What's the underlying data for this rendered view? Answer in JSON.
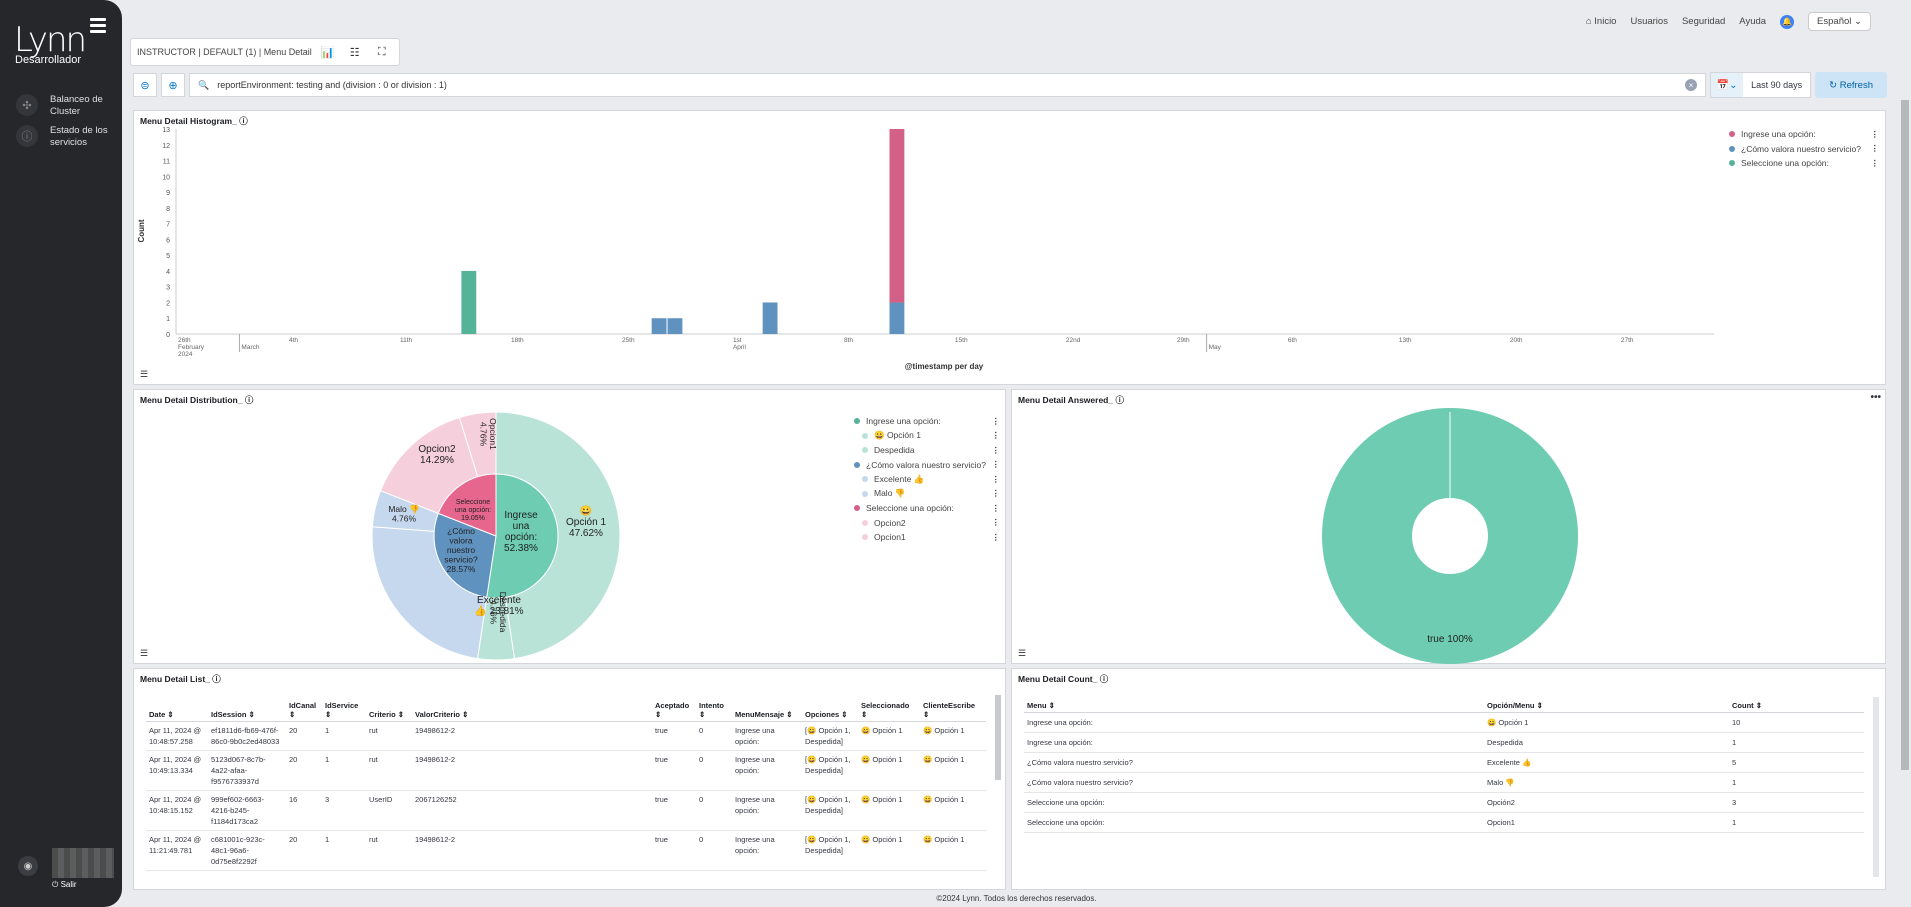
{
  "brand": {
    "logo": "Lynn",
    "role": "Desarrollador",
    "logout": "Salir"
  },
  "sidebar": {
    "items": [
      {
        "label": "Balanceo de Cluster"
      },
      {
        "label": "Estado de los servicios"
      }
    ]
  },
  "topnav": {
    "home": "Inicio",
    "users": "Usuarios",
    "security": "Seguridad",
    "help": "Ayuda",
    "language": "Español"
  },
  "breadcrumb": {
    "text": "INSTRUCTOR | DEFAULT (1) | Menu Detail"
  },
  "query": {
    "text": "reportEnvironment: testing and (division : 0 or division : 1)",
    "range": "Last 90 days",
    "refresh": "Refresh"
  },
  "colors": {
    "pink": "#d36086",
    "blue": "#6092c0",
    "green": "#54b399",
    "teal": "#6dccb1"
  },
  "histogram": {
    "title": "Menu Detail Histogram_",
    "ylabel": "Count",
    "xlabel": "@timestamp per day",
    "legend": [
      "Ingrese una opción:",
      "¿Cómo valora nuestro servicio?",
      "Seleccione una opción:"
    ],
    "yticks": [
      "0",
      "1",
      "2",
      "3",
      "4",
      "5",
      "6",
      "7",
      "8",
      "9",
      "10",
      "11",
      "12",
      "13"
    ],
    "xticks": [
      "26th\nFebruary\n2024",
      "4th",
      "11th",
      "18th",
      "25th",
      "1st\nApril",
      "8th",
      "15th",
      "22nd",
      "29th",
      "6th",
      "13th",
      "20th",
      "27th"
    ],
    "xticks_month": [
      "March",
      "May"
    ]
  },
  "chart_data": [
    {
      "type": "bar",
      "title": "Menu Detail Histogram_",
      "xlabel": "@timestamp per day",
      "ylabel": "Count",
      "ylim": [
        0,
        13
      ],
      "x": [
        "2024-03-15",
        "2024-03-27",
        "2024-03-28",
        "2024-04-03",
        "2024-04-11"
      ],
      "series": [
        {
          "name": "Seleccione una opción:",
          "values": [
            4,
            0,
            0,
            0,
            0
          ]
        },
        {
          "name": "¿Cómo valora nuestro servicio?",
          "values": [
            0,
            1,
            1,
            2,
            2
          ]
        },
        {
          "name": "Ingrese una opción:",
          "values": [
            0,
            0,
            0,
            0,
            11
          ]
        }
      ]
    },
    {
      "type": "pie",
      "title": "Menu Detail Distribution_",
      "inner": [
        {
          "label": "Ingrese una opción:",
          "value": 52.38
        },
        {
          "label": "¿Cómo valora nuestro servicio?",
          "value": 28.57
        },
        {
          "label": "Seleccione una opción:",
          "value": 19.05
        }
      ],
      "outer": [
        {
          "label": "😀 Opción 1",
          "value": 47.62
        },
        {
          "label": "Despedida",
          "value": 4.76
        },
        {
          "label": "Excelente 👍",
          "value": 23.81
        },
        {
          "label": "Malo 👎",
          "value": 4.76
        },
        {
          "label": "Opcion2",
          "value": 14.29
        },
        {
          "label": "Opcion1",
          "value": 4.76
        }
      ]
    },
    {
      "type": "pie",
      "title": "Menu Detail Answered_",
      "slices": [
        {
          "label": "true",
          "value": 100
        }
      ]
    }
  ],
  "distribution": {
    "title": "Menu Detail Distribution_",
    "inner_labels": [
      {
        "t": "Ingrese una opción: 52.38%"
      },
      {
        "t": "¿Cómo valora nuestro servicio? 28.57%"
      },
      {
        "t": "Seleccione una opción: 19.05%"
      }
    ],
    "outer_labels": [
      {
        "name": "😀 Opción 1",
        "pct": "47.62%"
      },
      {
        "name": "Despedida",
        "pct": "4.76%"
      },
      {
        "name": "Excelente 👍",
        "pct": "23.81%"
      },
      {
        "name": "Malo 👎",
        "pct": "4.76%"
      },
      {
        "name": "Opcion2",
        "pct": "14.29%"
      },
      {
        "name": "Opcion1",
        "pct": "4.76%"
      }
    ],
    "legend": [
      {
        "label": "Ingrese una opción:",
        "color": "#54b399",
        "sub": false
      },
      {
        "label": "😀 Opción 1",
        "color": "#b9e3d7",
        "sub": true
      },
      {
        "label": "Despedida",
        "color": "#b9e3d7",
        "sub": true
      },
      {
        "label": "¿Cómo valora nuestro servicio?",
        "color": "#6092c0",
        "sub": false
      },
      {
        "label": "Excelente 👍",
        "color": "#c5d8ee",
        "sub": true
      },
      {
        "label": "Malo 👎",
        "color": "#c5d8ee",
        "sub": true
      },
      {
        "label": "Seleccione una opción:",
        "color": "#d36086",
        "sub": false
      },
      {
        "label": "Opcion2",
        "color": "#f5cfdc",
        "sub": true
      },
      {
        "label": "Opcion1",
        "color": "#f5cfdc",
        "sub": true
      }
    ]
  },
  "answered": {
    "title": "Menu Detail Answered_",
    "label": "true 100%"
  },
  "list": {
    "title": "Menu Detail List_",
    "headers": [
      "Date ⇕",
      "IdSession ⇕",
      "IdCanal ⇕",
      "IdService ⇕",
      "Criterio ⇕",
      "ValorCriterio ⇕",
      "Aceptado ⇕",
      "Intento ⇕",
      "MenuMensaje ⇕",
      "Opciones ⇕",
      "Seleccionado ⇕",
      "ClienteEscribe ⇕"
    ],
    "rows": [
      [
        "Apr 11, 2024 @ 10:48:57.258",
        "ef1811d6-fb69-476f-86c0-9b0c2ed48033",
        "20",
        "1",
        "rut",
        "19498612-2",
        "true",
        "0",
        "Ingrese una opción:",
        "[😀 Opción 1, Despedida]",
        "😀 Opción 1",
        "😀 Opción 1"
      ],
      [
        "Apr 11, 2024 @ 10:49:13.334",
        "5123d067-8c7b-4a22-afaa-f9576733937d",
        "20",
        "1",
        "rut",
        "19498612-2",
        "true",
        "0",
        "Ingrese una opción:",
        "[😀 Opción 1, Despedida]",
        "😀 Opción 1",
        "😀 Opción 1"
      ],
      [
        "Apr 11, 2024 @ 10:48:15.152",
        "999ef602-6663-4216-b245-f1184d173ca2",
        "16",
        "3",
        "UserID",
        "2067126252",
        "true",
        "0",
        "Ingrese una opción:",
        "[😀 Opción 1, Despedida]",
        "😀 Opción 1",
        "😀 Opción 1"
      ],
      [
        "Apr 11, 2024 @ 11:21:49.781",
        "c681001c-923c-48c1-96a6-0d75e8f2292f",
        "20",
        "1",
        "rut",
        "19498612-2",
        "true",
        "0",
        "Ingrese una opción:",
        "[😀 Opción 1, Despedida]",
        "😀 Opción 1",
        "😀 Opción 1"
      ]
    ]
  },
  "count": {
    "title": "Menu Detail Count_",
    "headers": [
      "Menu ⇕",
      "Opción/Menu ⇕",
      "Count ⇕"
    ],
    "rows": [
      [
        "Ingrese una opción:",
        "😀 Opción 1",
        "10"
      ],
      [
        "Ingrese una opción:",
        "Despedida",
        "1"
      ],
      [
        "¿Cómo valora nuestro servicio?",
        "Excelente 👍",
        "5"
      ],
      [
        "¿Cómo valora nuestro servicio?",
        "Malo 👎",
        "1"
      ],
      [
        "Seleccione una opción:",
        "Opción2",
        "3"
      ],
      [
        "Seleccione una opción:",
        "Opcion1",
        "1"
      ]
    ]
  },
  "footer": "©2024 Lynn. Todos los derechos reservados."
}
